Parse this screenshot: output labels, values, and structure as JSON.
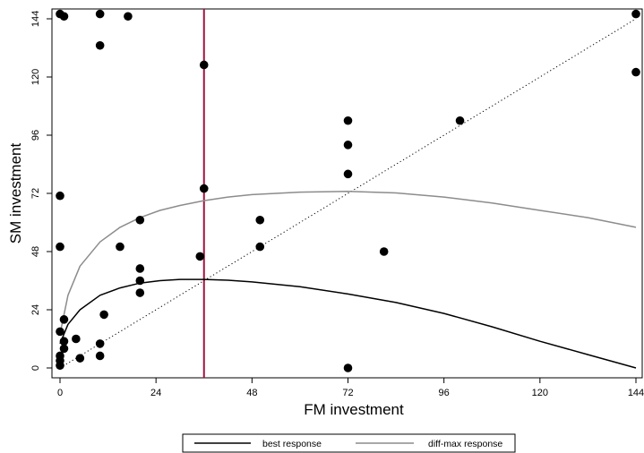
{
  "chart_data": {
    "type": "scatter",
    "title": "",
    "xlabel": "FM investment",
    "ylabel": "SM investment",
    "xlim": [
      0,
      144
    ],
    "ylim": [
      0,
      144
    ],
    "x_ticks": [
      0,
      24,
      48,
      72,
      96,
      120,
      144
    ],
    "y_ticks": [
      0,
      24,
      48,
      72,
      96,
      120,
      144
    ],
    "grid": false,
    "legend_position": "bottom",
    "points": [
      {
        "x": 0,
        "y": 1
      },
      {
        "x": 0,
        "y": 3
      },
      {
        "x": 0,
        "y": 5
      },
      {
        "x": 0,
        "y": 15
      },
      {
        "x": 0,
        "y": 50
      },
      {
        "x": 0,
        "y": 71
      },
      {
        "x": 0,
        "y": 146
      },
      {
        "x": 1,
        "y": 145
      },
      {
        "x": 1,
        "y": 8
      },
      {
        "x": 1,
        "y": 11
      },
      {
        "x": 1,
        "y": 20
      },
      {
        "x": 4,
        "y": 12
      },
      {
        "x": 5,
        "y": 4
      },
      {
        "x": 10,
        "y": 5
      },
      {
        "x": 10,
        "y": 10
      },
      {
        "x": 11,
        "y": 22
      },
      {
        "x": 10,
        "y": 133
      },
      {
        "x": 10,
        "y": 146
      },
      {
        "x": 15,
        "y": 50
      },
      {
        "x": 17,
        "y": 145
      },
      {
        "x": 20,
        "y": 31
      },
      {
        "x": 20,
        "y": 36
      },
      {
        "x": 20,
        "y": 41
      },
      {
        "x": 20,
        "y": 61
      },
      {
        "x": 35,
        "y": 46
      },
      {
        "x": 36,
        "y": 74
      },
      {
        "x": 36,
        "y": 125
      },
      {
        "x": 50,
        "y": 50
      },
      {
        "x": 50,
        "y": 61
      },
      {
        "x": 72,
        "y": 0
      },
      {
        "x": 72,
        "y": 80
      },
      {
        "x": 72,
        "y": 92
      },
      {
        "x": 72,
        "y": 102
      },
      {
        "x": 81,
        "y": 48
      },
      {
        "x": 100,
        "y": 102
      },
      {
        "x": 144,
        "y": 146
      },
      {
        "x": 144,
        "y": 122
      }
    ],
    "series": [
      {
        "name": "best response",
        "color": "#000000",
        "style": "solid",
        "x": [
          0,
          2,
          5,
          10,
          15,
          20,
          25,
          30,
          36,
          42,
          48,
          60,
          72,
          84,
          96,
          108,
          120,
          132,
          144
        ],
        "y": [
          10,
          18,
          24,
          30,
          33,
          35,
          36,
          36.5,
          36.5,
          36.2,
          35.5,
          33.5,
          30.5,
          27,
          22.5,
          17,
          11,
          5.5,
          0
        ]
      },
      {
        "name": "diff-max response",
        "color": "#8c8c8c",
        "style": "solid",
        "x": [
          0,
          2,
          5,
          10,
          15,
          20,
          25,
          30,
          36,
          42,
          48,
          60,
          72,
          84,
          96,
          108,
          120,
          132,
          144
        ],
        "y": [
          14,
          30,
          42,
          52,
          58,
          62,
          65,
          67,
          69,
          70.5,
          71.5,
          72.5,
          72.8,
          72.2,
          70.5,
          68,
          65,
          62,
          58
        ]
      }
    ],
    "reference_lines": [
      {
        "kind": "diagonal",
        "x": [
          0,
          144
        ],
        "y": [
          0,
          144
        ],
        "color": "#000000",
        "style": "dotted"
      },
      {
        "kind": "vertical",
        "x": 36,
        "color": "#a0133f",
        "style": "solid"
      }
    ],
    "legend": [
      "best response",
      "diff-max response"
    ]
  }
}
